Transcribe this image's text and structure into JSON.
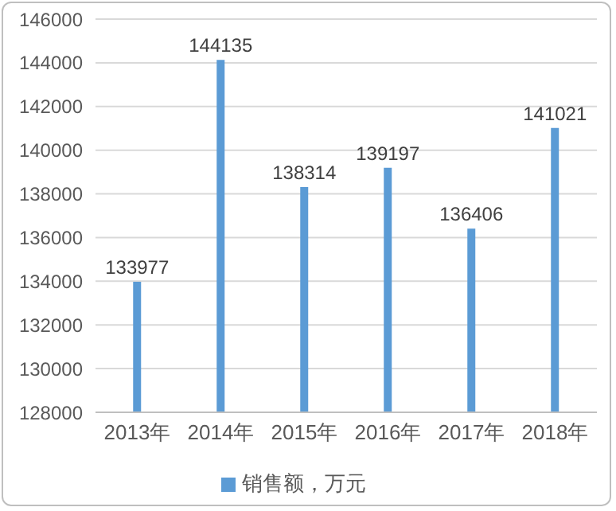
{
  "chart_data": {
    "type": "bar",
    "categories": [
      "2013年",
      "2014年",
      "2015年",
      "2016年",
      "2017年",
      "2018年"
    ],
    "series": [
      {
        "name": "销售额，万元",
        "color": "#5b9bd5",
        "values": [
          133977,
          144135,
          138314,
          139197,
          136406,
          141021
        ]
      }
    ],
    "ylim": [
      128000,
      146000
    ],
    "yticks": [
      128000,
      130000,
      132000,
      134000,
      136000,
      138000,
      140000,
      142000,
      144000,
      146000
    ],
    "grid": "y",
    "legend": "bottom",
    "data_labels": true
  }
}
